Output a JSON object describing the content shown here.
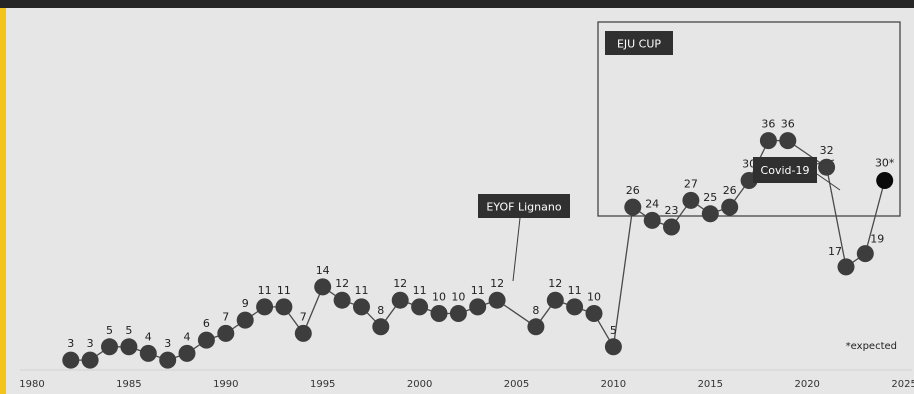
{
  "chart_data": {
    "type": "line",
    "x": [
      1982,
      1983,
      1984,
      1985,
      1986,
      1987,
      1988,
      1989,
      1990,
      1991,
      1992,
      1993,
      1994,
      1995,
      1996,
      1997,
      1998,
      1999,
      2000,
      2001,
      2002,
      2003,
      2004,
      2005,
      2006,
      2007,
      2008,
      2009,
      2010,
      2011,
      2012,
      2013,
      2014,
      2015,
      2016,
      2017,
      2018,
      2019,
      2021,
      2022,
      2023,
      2024
    ],
    "values": [
      3,
      3,
      5,
      5,
      4,
      3,
      4,
      6,
      7,
      9,
      11,
      11,
      7,
      14,
      12,
      11,
      8,
      12,
      11,
      10,
      10,
      11,
      12,
      null,
      8,
      12,
      11,
      10,
      5,
      26,
      24,
      23,
      27,
      25,
      26,
      30,
      36,
      36,
      32,
      17,
      19,
      30
    ],
    "value_labels": [
      "3",
      "3",
      "5",
      "5",
      "4",
      "3",
      "4",
      "6",
      "7",
      "9",
      "11",
      "11",
      "7",
      "14",
      "12",
      "11",
      "8",
      "12",
      "11",
      "10",
      "10",
      "11",
      "12",
      "",
      "8",
      "12",
      "11",
      "10",
      "5",
      "26",
      "24",
      "23",
      "27",
      "25",
      "26",
      "30",
      "36",
      "36",
      "32",
      "17",
      "19",
      "30*"
    ],
    "highlight_point": {
      "x": 2024,
      "value": 30,
      "color": "#0a0a0a"
    },
    "xlim": [
      1980,
      2025
    ],
    "ylim": [
      0,
      40
    ],
    "xticks": [
      "1980",
      "1985",
      "1990",
      "1995",
      "2000",
      "2005",
      "2010",
      "2015",
      "2020",
      "2025"
    ],
    "annotations": {
      "eyof": "EYOF Lignano",
      "eju_cup": "EJU CUP",
      "covid": "Covid-19",
      "expected_note": "*expected"
    },
    "colors": {
      "background": "#e6e6e6",
      "marker": "#3d3d3d",
      "highlight": "#0a0a0a",
      "line": "#4a4a4a",
      "label_box": "#303030",
      "accent": "#f3c51a",
      "top_bar": "#262626"
    },
    "grid": false,
    "legend": "none"
  }
}
